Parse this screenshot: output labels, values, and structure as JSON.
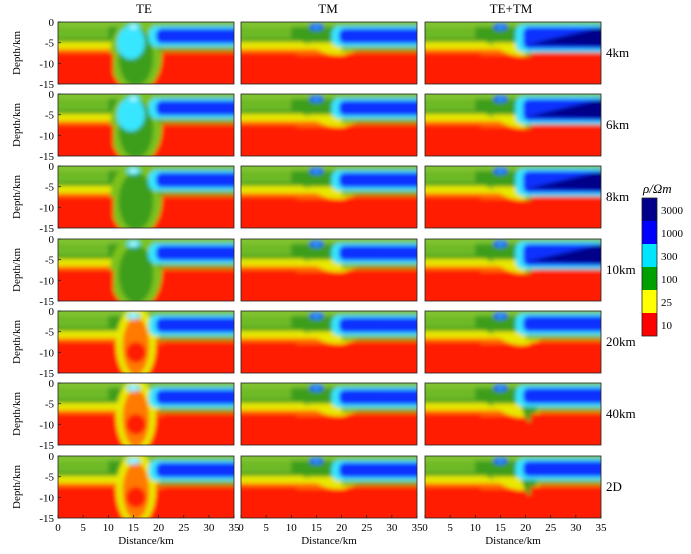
{
  "columns": [
    "TE",
    "TM",
    "TE+TM"
  ],
  "rows": [
    "4km",
    "6km",
    "8km",
    "10km",
    "20km",
    "40km",
    "2D"
  ],
  "axes": {
    "ylabel": "Depth/km",
    "xlabel": "Distance/km",
    "yticks": [
      "0",
      "-5",
      "-10",
      "-15"
    ],
    "xticks": [
      "0",
      "5",
      "10",
      "15",
      "20",
      "25",
      "30",
      "35"
    ]
  },
  "colorbar": {
    "title": "ρ/Ωm",
    "labels": [
      "3000",
      "1000",
      "300",
      "100",
      "25",
      "10"
    ],
    "colors": [
      "#00008b",
      "#0000ff",
      "#00e5ff",
      "#00a000",
      "#ffff00",
      "#ff0000"
    ]
  },
  "palette": {
    "red": "#ff1a00",
    "orange": "#ff7a00",
    "yellow": "#e8e800",
    "green": "#3c9e1e",
    "cyan": "#37e6ff",
    "blue": "#1030ff",
    "navy": "#000088"
  }
}
